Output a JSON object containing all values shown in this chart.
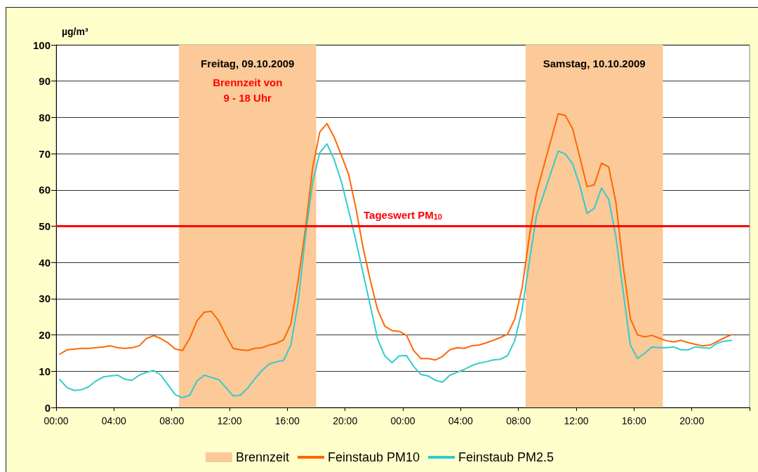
{
  "chart_data": {
    "type": "line",
    "ylabel": "µg/m³",
    "x": [
      "2009-10-09T00:15",
      "2009-10-09T00:45",
      "2009-10-09T01:15",
      "2009-10-09T01:45",
      "2009-10-09T02:15",
      "2009-10-09T02:45",
      "2009-10-09T03:15",
      "2009-10-09T03:45",
      "2009-10-09T04:15",
      "2009-10-09T04:45",
      "2009-10-09T05:15",
      "2009-10-09T05:45",
      "2009-10-09T06:15",
      "2009-10-09T06:45",
      "2009-10-09T07:15",
      "2009-10-09T07:45",
      "2009-10-09T08:15",
      "2009-10-09T08:45",
      "2009-10-09T09:15",
      "2009-10-09T09:45",
      "2009-10-09T10:15",
      "2009-10-09T10:45",
      "2009-10-09T11:15",
      "2009-10-09T11:45",
      "2009-10-09T12:15",
      "2009-10-09T12:45",
      "2009-10-09T13:15",
      "2009-10-09T13:45",
      "2009-10-09T14:15",
      "2009-10-09T14:45",
      "2009-10-09T15:15",
      "2009-10-09T15:45",
      "2009-10-09T16:15",
      "2009-10-09T16:45",
      "2009-10-09T17:15",
      "2009-10-09T17:45",
      "2009-10-09T18:15",
      "2009-10-09T18:45",
      "2009-10-09T19:15",
      "2009-10-09T19:45",
      "2009-10-09T20:15",
      "2009-10-09T20:45",
      "2009-10-09T21:15",
      "2009-10-09T21:45",
      "2009-10-09T22:15",
      "2009-10-09T22:45",
      "2009-10-09T23:15",
      "2009-10-09T23:45",
      "2009-10-10T00:15",
      "2009-10-10T00:45",
      "2009-10-10T01:15",
      "2009-10-10T01:45",
      "2009-10-10T02:15",
      "2009-10-10T02:45",
      "2009-10-10T03:15",
      "2009-10-10T03:45",
      "2009-10-10T04:15",
      "2009-10-10T04:45",
      "2009-10-10T05:15",
      "2009-10-10T05:45",
      "2009-10-10T06:15",
      "2009-10-10T06:45",
      "2009-10-10T07:15",
      "2009-10-10T07:45",
      "2009-10-10T08:15",
      "2009-10-10T08:45",
      "2009-10-10T09:15",
      "2009-10-10T09:45",
      "2009-10-10T10:15",
      "2009-10-10T10:45",
      "2009-10-10T11:15",
      "2009-10-10T11:45",
      "2009-10-10T12:15",
      "2009-10-10T12:45",
      "2009-10-10T13:15",
      "2009-10-10T13:45",
      "2009-10-10T14:15",
      "2009-10-10T14:45",
      "2009-10-10T15:15",
      "2009-10-10T15:45",
      "2009-10-10T16:15",
      "2009-10-10T16:45",
      "2009-10-10T17:15",
      "2009-10-10T17:45",
      "2009-10-10T18:15",
      "2009-10-10T18:45",
      "2009-10-10T19:15",
      "2009-10-10T19:45",
      "2009-10-10T20:15",
      "2009-10-10T20:45",
      "2009-10-10T21:15",
      "2009-10-10T21:45",
      "2009-10-10T22:15",
      "2009-10-10T22:45"
    ],
    "series": [
      {
        "name": "Feinstaub PM10",
        "color": "#ff6600",
        "values": [
          14.7,
          15.9,
          16.1,
          16.3,
          16.3,
          16.5,
          16.7,
          17.0,
          16.5,
          16.3,
          16.5,
          17.0,
          19.0,
          19.8,
          19.0,
          17.8,
          16.1,
          15.7,
          19.1,
          23.9,
          26.3,
          26.5,
          23.9,
          19.9,
          16.3,
          15.9,
          15.7,
          16.3,
          16.5,
          17.2,
          17.7,
          18.7,
          23.1,
          35,
          49,
          66,
          76,
          78.3,
          74.5,
          69.5,
          64.2,
          55,
          44,
          35,
          27,
          22.4,
          21.2,
          21.0,
          19.9,
          15.7,
          13.5,
          13.5,
          13.1,
          14.1,
          15.9,
          16.5,
          16.3,
          17.0,
          17.2,
          17.8,
          18.5,
          19.3,
          20.2,
          24.4,
          32.9,
          47,
          59.2,
          66.5,
          73.7,
          81.0,
          80.5,
          76.9,
          69,
          60.9,
          61.4,
          67.4,
          66.3,
          56.5,
          39,
          24.5,
          20.0,
          19.5,
          19.9,
          19.1,
          18.4,
          18.1,
          18.5,
          17.9,
          17.4,
          17.0,
          17.2,
          18.2,
          19.2,
          20.1
        ]
      },
      {
        "name": "Feinstaub PM2.5",
        "color": "#33cccc",
        "values": [
          7.7,
          5.5,
          4.7,
          4.9,
          5.7,
          7.3,
          8.4,
          8.7,
          8.9,
          7.8,
          7.5,
          8.9,
          9.7,
          10.2,
          8.9,
          6.2,
          3.5,
          2.7,
          3.4,
          7.3,
          8.9,
          8.3,
          7.7,
          5.5,
          3.2,
          3.4,
          5.3,
          7.9,
          10.2,
          12.0,
          12.6,
          13.0,
          17.3,
          29,
          47,
          62,
          70.3,
          72.7,
          68.3,
          62.2,
          54.2,
          46,
          37,
          28,
          18.9,
          14.2,
          12.4,
          14.2,
          14.3,
          11.3,
          9.1,
          8.7,
          7.5,
          7.0,
          8.9,
          9.7,
          10.5,
          11.5,
          12.2,
          12.6,
          13.1,
          13.3,
          14.3,
          18.5,
          26.9,
          40,
          52.9,
          58.8,
          64.8,
          70.7,
          69.9,
          67.2,
          61.2,
          53.5,
          54.9,
          60.5,
          57.4,
          47,
          32,
          17.2,
          13.5,
          15.0,
          16.7,
          16.5,
          16.5,
          16.7,
          15.9,
          15.9,
          16.7,
          16.5,
          16.3,
          17.7,
          18.3,
          18.5
        ]
      }
    ],
    "xlim": [
      "2009-10-09T00:00",
      "2009-10-11T00:00"
    ],
    "xticks": [
      {
        "value": "2009-10-09T00:00",
        "label": "00:00"
      },
      {
        "value": "2009-10-09T04:00",
        "label": "04:00"
      },
      {
        "value": "2009-10-09T08:00",
        "label": "08:00"
      },
      {
        "value": "2009-10-09T12:00",
        "label": "12:00"
      },
      {
        "value": "2009-10-09T16:00",
        "label": "16:00"
      },
      {
        "value": "2009-10-09T20:00",
        "label": "20:00"
      },
      {
        "value": "2009-10-10T00:00",
        "label": "00:00"
      },
      {
        "value": "2009-10-10T04:00",
        "label": "04:00"
      },
      {
        "value": "2009-10-10T08:00",
        "label": "08:00"
      },
      {
        "value": "2009-10-10T12:00",
        "label": "12:00"
      },
      {
        "value": "2009-10-10T16:00",
        "label": "16:00"
      },
      {
        "value": "2009-10-10T20:00",
        "label": "20:00"
      },
      {
        "value": "2009-10-11T00:00",
        "label": null
      }
    ],
    "ylim": [
      0,
      100
    ],
    "yticks": [
      0,
      10,
      20,
      30,
      40,
      50,
      60,
      70,
      80,
      90,
      100
    ],
    "grid": "y",
    "marker": "none",
    "line_style": "solid",
    "legend": "bottom",
    "ref_lines": [
      {
        "axis": "y",
        "value": 50,
        "label": "Tageswert PM$_{10}$",
        "color": "#ff0000"
      }
    ],
    "bands": [
      {
        "axis": "x",
        "from": "2009-10-09T08:30",
        "to": "2009-10-09T18:00",
        "label": "Brennzeit",
        "color": "#fcc998"
      },
      {
        "axis": "x",
        "from": "2009-10-10T08:30",
        "to": "2009-10-10T18:00",
        "color": "#fcc998"
      }
    ],
    "annotations": [
      "Freitag, 09.10.2009",
      "Brennzeit von\n9 - 18 Uhr",
      "Samstag, 10.10.2009"
    ]
  }
}
